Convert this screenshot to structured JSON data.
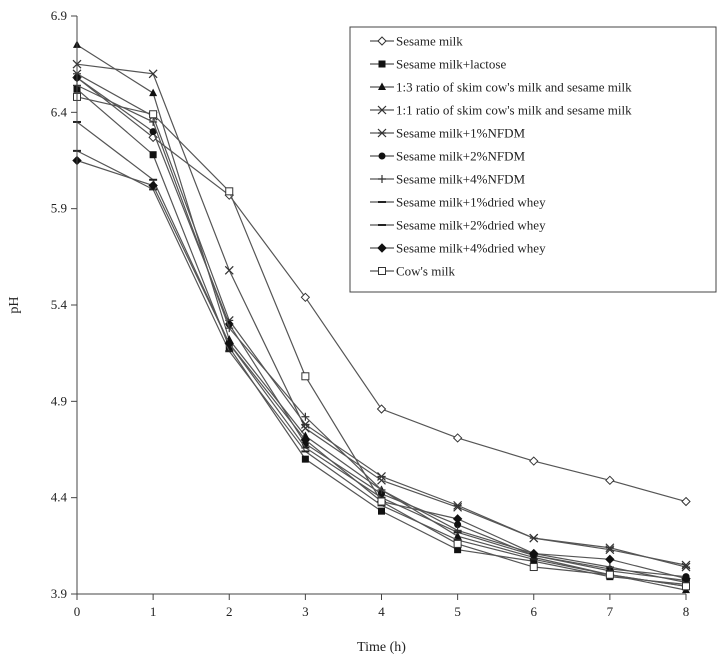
{
  "chart_data": {
    "type": "line",
    "title": "",
    "xlabel": "Time (h)",
    "ylabel": "pH",
    "x": [
      0,
      1,
      2,
      3,
      4,
      5,
      6,
      7,
      8
    ],
    "xticks": [
      "0",
      "1",
      "2",
      "3",
      "4",
      "5",
      "6",
      "7",
      "8"
    ],
    "yticks": [
      "3.9",
      "4.4",
      "4.9",
      "5.4",
      "5.9",
      "6.4",
      "6.9"
    ],
    "xlim": [
      0,
      8
    ],
    "ylim": [
      3.9,
      6.9
    ],
    "grid": false,
    "legend_position": "top-right",
    "series": [
      {
        "name": "Sesame milk",
        "marker": "diamond-open",
        "values": [
          6.58,
          6.27,
          5.97,
          5.44,
          4.86,
          4.71,
          4.59,
          4.49,
          4.38
        ]
      },
      {
        "name": "Sesame milk+lactose",
        "marker": "square-filled",
        "values": [
          6.52,
          6.18,
          5.18,
          4.6,
          4.33,
          4.13,
          4.07,
          3.99,
          3.95
        ]
      },
      {
        "name": "1:3 ratio of skim cow's milk and sesame milk",
        "marker": "triangle-filled",
        "values": [
          6.75,
          6.5,
          5.22,
          4.72,
          4.44,
          4.2,
          4.09,
          4.0,
          3.92
        ]
      },
      {
        "name": "1:1 ratio of skim cow's milk and sesame milk",
        "marker": "x",
        "values": [
          6.65,
          6.6,
          5.58,
          4.76,
          4.49,
          4.35,
          4.19,
          4.13,
          4.05
        ]
      },
      {
        "name": "Sesame milk+1%NFDM",
        "marker": "star",
        "values": [
          6.6,
          6.38,
          5.32,
          4.78,
          4.51,
          4.36,
          4.19,
          4.14,
          4.04
        ]
      },
      {
        "name": "Sesame milk+2%NFDM",
        "marker": "circle-filled",
        "values": [
          6.58,
          6.3,
          5.3,
          4.68,
          4.42,
          4.26,
          4.1,
          4.03,
          3.99
        ]
      },
      {
        "name": "Sesame milk+4%NFDM",
        "marker": "plus",
        "values": [
          6.54,
          6.35,
          5.28,
          4.82,
          4.44,
          4.23,
          4.11,
          4.04,
          3.96
        ]
      },
      {
        "name": "Sesame milk+1%dried whey",
        "marker": "dash",
        "values": [
          6.35,
          6.05,
          5.2,
          4.66,
          4.4,
          4.22,
          4.1,
          4.02,
          3.97
        ]
      },
      {
        "name": "Sesame milk+2%dried whey",
        "marker": "dash",
        "values": [
          6.2,
          6.0,
          5.16,
          4.64,
          4.36,
          4.18,
          4.08,
          4.0,
          3.94
        ]
      },
      {
        "name": "Sesame milk+4%dried whey",
        "marker": "diamond-filled",
        "values": [
          6.15,
          6.02,
          5.2,
          4.7,
          4.38,
          4.29,
          4.11,
          4.08,
          3.98
        ]
      },
      {
        "name": "Cow's milk",
        "marker": "square-open",
        "values": [
          6.48,
          6.39,
          5.99,
          5.03,
          4.38,
          4.16,
          4.04,
          4.0,
          3.94
        ]
      }
    ]
  }
}
